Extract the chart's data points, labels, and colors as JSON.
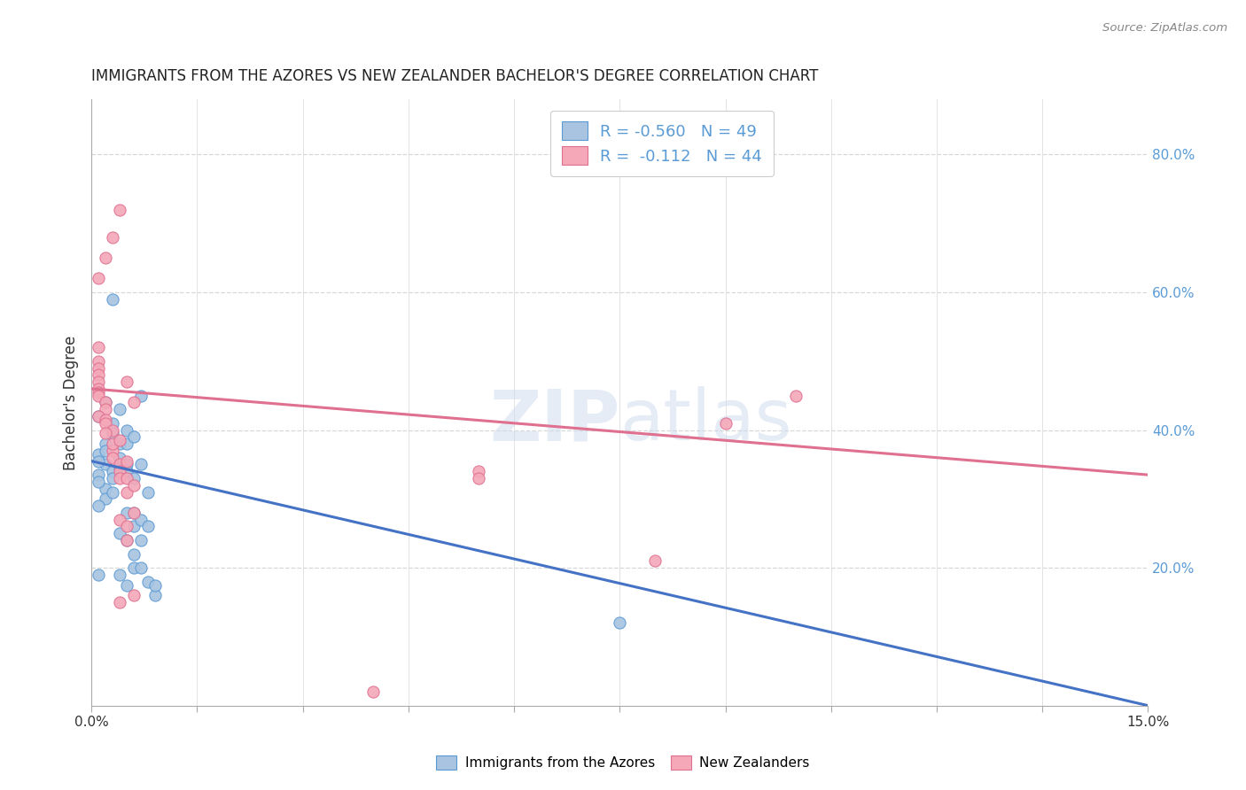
{
  "title": "IMMIGRANTS FROM THE AZORES VS NEW ZEALANDER BACHELOR'S DEGREE CORRELATION CHART",
  "source": "Source: ZipAtlas.com",
  "ylabel": "Bachelor's Degree",
  "ylabel_right_ticks": [
    "20.0%",
    "40.0%",
    "60.0%",
    "80.0%"
  ],
  "ylabel_right_vals": [
    0.2,
    0.4,
    0.6,
    0.8
  ],
  "legend_entries": [
    {
      "label": "R = -0.560   N = 49",
      "color": "#a8c4e0"
    },
    {
      "label": "R =  -0.112   N = 44",
      "color": "#f4a8b8"
    }
  ],
  "legend_series": [
    {
      "name": "Immigrants from the Azores",
      "color": "#a8c4e0"
    },
    {
      "name": "New Zealanders",
      "color": "#f4a8b8"
    }
  ],
  "blue_dots": [
    [
      0.001,
      0.335
    ],
    [
      0.002,
      0.315
    ],
    [
      0.001,
      0.325
    ],
    [
      0.002,
      0.35
    ],
    [
      0.001,
      0.365
    ],
    [
      0.003,
      0.34
    ],
    [
      0.002,
      0.3
    ],
    [
      0.001,
      0.29
    ],
    [
      0.003,
      0.33
    ],
    [
      0.004,
      0.345
    ],
    [
      0.001,
      0.355
    ],
    [
      0.002,
      0.38
    ],
    [
      0.003,
      0.31
    ],
    [
      0.002,
      0.37
    ],
    [
      0.001,
      0.42
    ],
    [
      0.003,
      0.41
    ],
    [
      0.002,
      0.44
    ],
    [
      0.004,
      0.43
    ],
    [
      0.003,
      0.395
    ],
    [
      0.005,
      0.4
    ],
    [
      0.004,
      0.38
    ],
    [
      0.005,
      0.35
    ],
    [
      0.004,
      0.36
    ],
    [
      0.005,
      0.38
    ],
    [
      0.006,
      0.39
    ],
    [
      0.005,
      0.34
    ],
    [
      0.006,
      0.33
    ],
    [
      0.007,
      0.45
    ],
    [
      0.003,
      0.59
    ],
    [
      0.004,
      0.25
    ],
    [
      0.005,
      0.28
    ],
    [
      0.006,
      0.28
    ],
    [
      0.005,
      0.24
    ],
    [
      0.006,
      0.26
    ],
    [
      0.007,
      0.27
    ],
    [
      0.008,
      0.31
    ],
    [
      0.007,
      0.35
    ],
    [
      0.004,
      0.19
    ],
    [
      0.005,
      0.175
    ],
    [
      0.006,
      0.2
    ],
    [
      0.007,
      0.24
    ],
    [
      0.006,
      0.22
    ],
    [
      0.007,
      0.2
    ],
    [
      0.008,
      0.26
    ],
    [
      0.009,
      0.16
    ],
    [
      0.008,
      0.18
    ],
    [
      0.009,
      0.175
    ],
    [
      0.001,
      0.19
    ],
    [
      0.075,
      0.12
    ]
  ],
  "pink_dots": [
    [
      0.001,
      0.52
    ],
    [
      0.001,
      0.5
    ],
    [
      0.001,
      0.49
    ],
    [
      0.001,
      0.48
    ],
    [
      0.001,
      0.47
    ],
    [
      0.001,
      0.46
    ],
    [
      0.001,
      0.455
    ],
    [
      0.001,
      0.45
    ],
    [
      0.002,
      0.44
    ],
    [
      0.002,
      0.43
    ],
    [
      0.001,
      0.42
    ],
    [
      0.002,
      0.415
    ],
    [
      0.002,
      0.41
    ],
    [
      0.003,
      0.4
    ],
    [
      0.002,
      0.395
    ],
    [
      0.003,
      0.37
    ],
    [
      0.003,
      0.38
    ],
    [
      0.004,
      0.385
    ],
    [
      0.003,
      0.36
    ],
    [
      0.004,
      0.35
    ],
    [
      0.004,
      0.34
    ],
    [
      0.005,
      0.355
    ],
    [
      0.004,
      0.33
    ],
    [
      0.005,
      0.33
    ],
    [
      0.005,
      0.31
    ],
    [
      0.006,
      0.32
    ],
    [
      0.003,
      0.68
    ],
    [
      0.004,
      0.72
    ],
    [
      0.002,
      0.65
    ],
    [
      0.001,
      0.62
    ],
    [
      0.005,
      0.47
    ],
    [
      0.006,
      0.44
    ],
    [
      0.004,
      0.27
    ],
    [
      0.005,
      0.26
    ],
    [
      0.006,
      0.28
    ],
    [
      0.005,
      0.24
    ],
    [
      0.004,
      0.15
    ],
    [
      0.006,
      0.16
    ],
    [
      0.1,
      0.45
    ],
    [
      0.08,
      0.21
    ],
    [
      0.055,
      0.34
    ],
    [
      0.055,
      0.33
    ],
    [
      0.04,
      0.02
    ],
    [
      0.09,
      0.41
    ]
  ],
  "blue_line": {
    "x": [
      0.0,
      0.15
    ],
    "y": [
      0.355,
      0.0
    ]
  },
  "pink_line": {
    "x": [
      0.0,
      0.15
    ],
    "y": [
      0.46,
      0.335
    ]
  },
  "dot_blue_color": "#a8c4e0",
  "dot_pink_color": "#f4a8b8",
  "line_blue_color": "#4472c4",
  "line_pink_color": "#e07090",
  "dot_blue_edge": "#5b9bd5",
  "dot_pink_edge": "#e07090",
  "watermark": "ZIPatlas",
  "xlim": [
    0.0,
    0.15
  ],
  "ylim": [
    0.0,
    0.88
  ],
  "background_color": "#ffffff",
  "grid_color": "#d8d8d8",
  "title_fontsize": 12,
  "axis_tick_fontsize": 11
}
